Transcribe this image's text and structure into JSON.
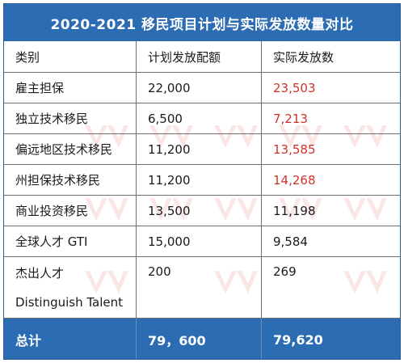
{
  "title": "2020-2021 移民项目计划与实际发放数量对比",
  "header": {
    "col1": "类别",
    "col2": "计划发放配额",
    "col3": "实际发放数"
  },
  "rows": [
    {
      "category": "雇主担保",
      "planned": "22,000",
      "actual": "23,503"
    },
    {
      "category": "独立技术移民",
      "planned": "6,500",
      "actual": "7,213"
    },
    {
      "category": "偏远地区技术移民",
      "planned": "11,200",
      "actual": "13,585"
    },
    {
      "category": "州担保技术移民",
      "planned": "11,200",
      "actual": "14,268"
    },
    {
      "category": "商业投资移民",
      "planned": "13,500",
      "actual": "11,198"
    },
    {
      "category": "全球人才 GTI",
      "planned": "15,000",
      "actual": "9,584"
    },
    {
      "category": "杰出人才",
      "category_en": "Distinguish Talent",
      "planned": "200",
      "actual": "269"
    }
  ],
  "total": {
    "label": "总计",
    "planned": "79，600",
    "actual": "79,620"
  },
  "colors": {
    "header_blue": "#2b6cb3",
    "highlight_red": "#d0312d",
    "watermark": "#e24a4a"
  },
  "watermark_icon": "victory-logo-icon"
}
